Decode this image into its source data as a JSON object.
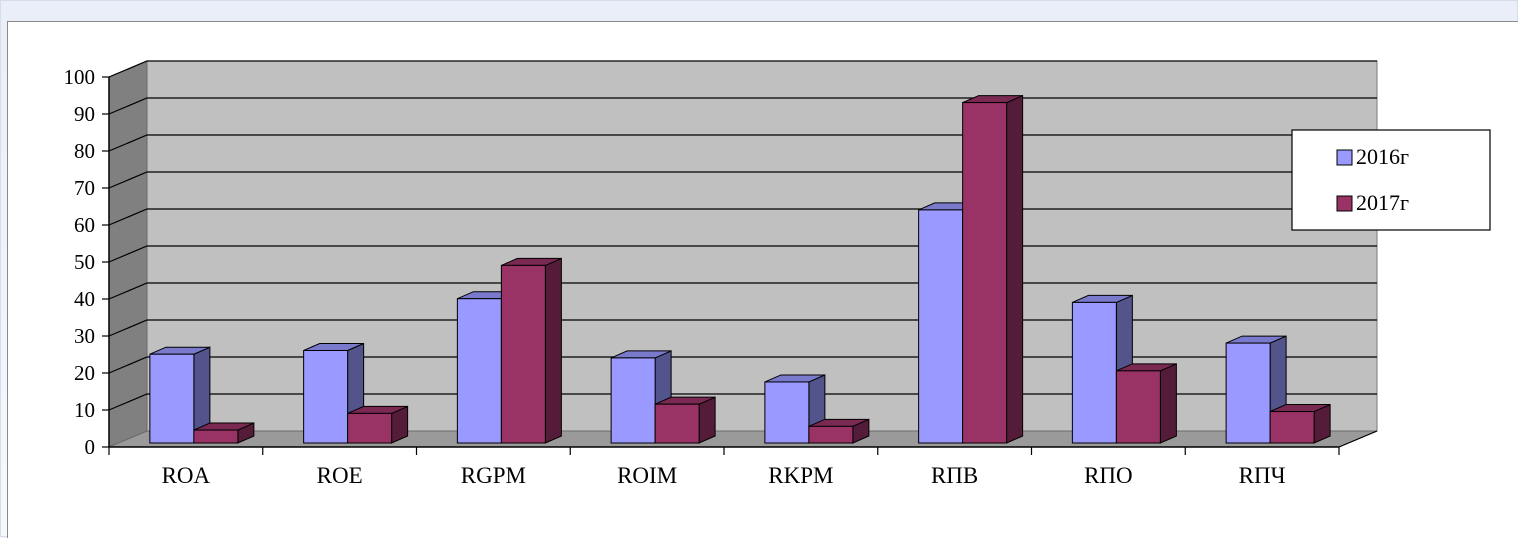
{
  "chart_data": {
    "type": "bar",
    "categories": [
      "ROA",
      "ROE",
      "RGPM",
      "ROIM",
      "RKPM",
      "RПВ",
      "RПО",
      "RПЧ"
    ],
    "series": [
      {
        "name": "2016г",
        "values": [
          24,
          25,
          39,
          23,
          16.5,
          63,
          38,
          27
        ],
        "color": "#9999ff"
      },
      {
        "name": "2017г",
        "values": [
          3.5,
          8,
          48,
          10.5,
          4.5,
          92,
          19.5,
          8.5
        ],
        "color": "#993366"
      }
    ],
    "title": "",
    "xlabel": "",
    "ylabel": "",
    "ylim": [
      0,
      100
    ],
    "yticks": [
      "0",
      "10",
      "20",
      "30",
      "40",
      "50",
      "60",
      "70",
      "80",
      "90",
      "100"
    ],
    "grid": true,
    "legend": "right",
    "style": "3d",
    "colors": {
      "wall": "#c0c0c0",
      "floor": "#9a9a9a",
      "side_wall": "#808080"
    }
  }
}
